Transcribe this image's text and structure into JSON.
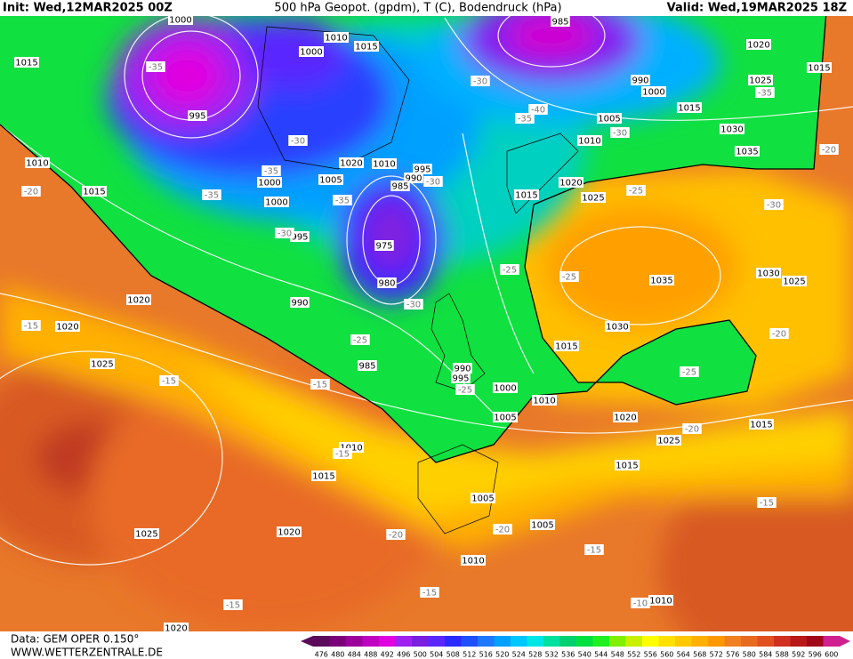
{
  "header": {
    "init": "Init: Wed,12MAR2025 00Z",
    "title": "500 hPa Geopot. (gpdm), T (C), Bodendruck (hPa)",
    "valid": "Valid: Wed,19MAR2025 18Z"
  },
  "footer": {
    "data": "Data: GEM OPER 0.150°",
    "site": "WWW.WETTERZENTRALE.DE"
  },
  "legend": {
    "colors": [
      "#5a0a5a",
      "#7a007a",
      "#9b009b",
      "#c000c0",
      "#e000e0",
      "#a020f0",
      "#7a1ee0",
      "#5a28ff",
      "#2a2aff",
      "#1e50ff",
      "#1e78ff",
      "#00a0ff",
      "#00c8ff",
      "#00e6e6",
      "#00e0a0",
      "#00d070",
      "#00e040",
      "#20f020",
      "#80f000",
      "#c8f000",
      "#ffff00",
      "#ffe000",
      "#ffc800",
      "#ffb000",
      "#ff9800",
      "#f08020",
      "#e86a20",
      "#e05020",
      "#d03020",
      "#b81818",
      "#a00818",
      "#d02090"
    ],
    "labels": [
      476,
      480,
      484,
      488,
      492,
      496,
      500,
      504,
      508,
      512,
      516,
      520,
      524,
      528,
      532,
      536,
      540,
      544,
      548,
      552,
      556,
      560,
      564,
      568,
      572,
      576,
      580,
      584,
      588,
      592,
      596,
      600
    ]
  },
  "pressure_labels": [
    "1000",
    "1010",
    "1015",
    "1000",
    "1015",
    "995",
    "985",
    "990",
    "1000",
    "1020",
    "1025",
    "1015",
    "1015",
    "1005",
    "1030",
    "1010",
    "1035",
    "1020",
    "1010",
    "995",
    "990",
    "985",
    "1005",
    "1000",
    "1000",
    "995",
    "975",
    "980",
    "990",
    "1015",
    "1010",
    "1020",
    "1020",
    "1025",
    "1015",
    "1020",
    "1025",
    "1035",
    "1030",
    "1025",
    "1030",
    "1015",
    "990",
    "995",
    "985",
    "1000",
    "1010",
    "1005",
    "1020",
    "1015",
    "1025",
    "1010",
    "1015",
    "1015",
    "1005",
    "1005",
    "1020",
    "1025",
    "1010",
    "1010",
    "1020"
  ],
  "temperature_labels": [
    "-35",
    "-30",
    "-35",
    "-35",
    "-30",
    "-35",
    "-30",
    "-40",
    "-35",
    "-30",
    "-30",
    "-25",
    "-30",
    "-25",
    "-25",
    "-30",
    "-25",
    "-15",
    "-15",
    "-25",
    "-25",
    "-20",
    "-20",
    "-35",
    "-20",
    "-15",
    "-20",
    "-20",
    "-15",
    "-15",
    "-15",
    "-15",
    "-10",
    "-20",
    "-15"
  ]
}
